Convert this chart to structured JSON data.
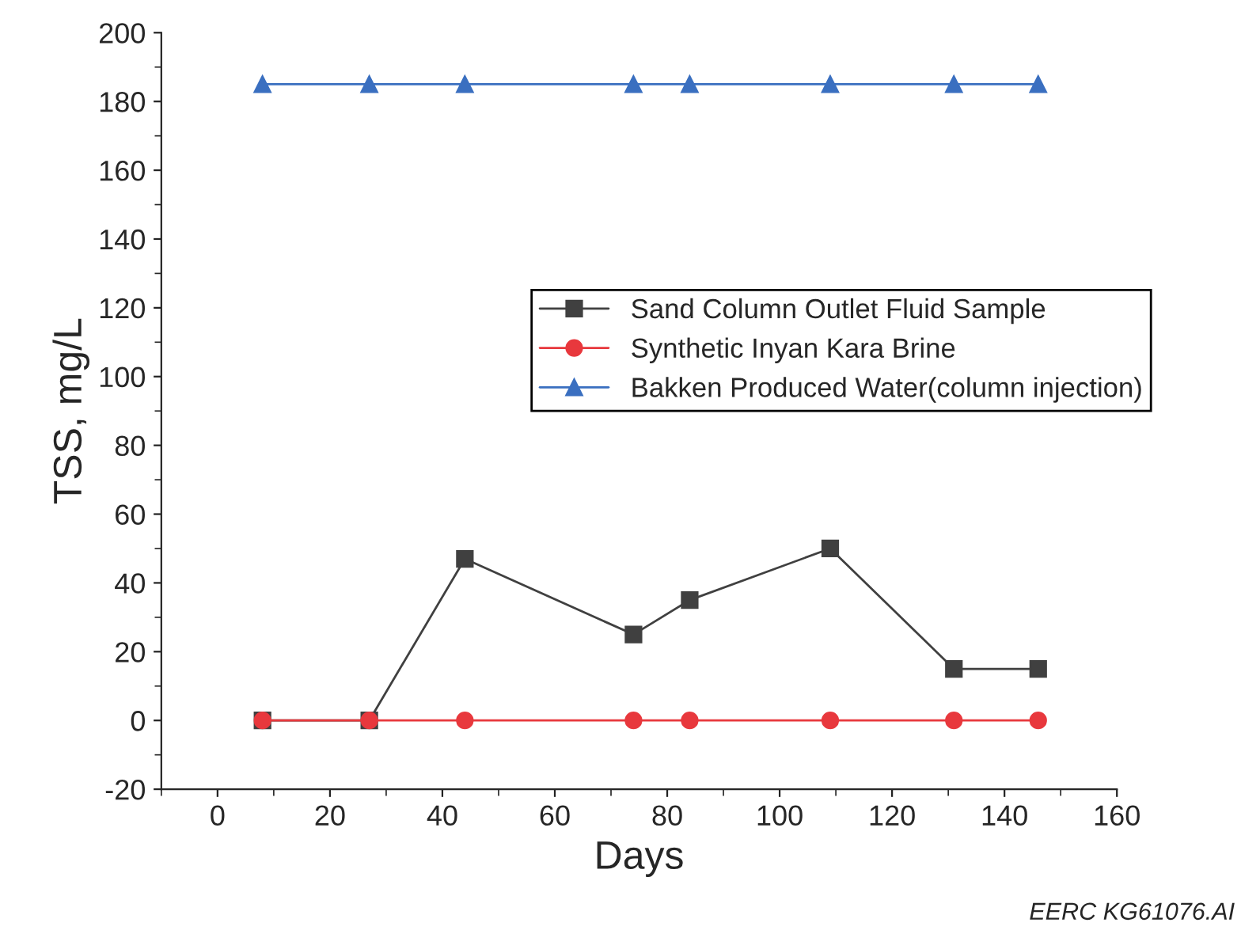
{
  "chart_data": {
    "type": "line",
    "xlabel": "Days",
    "ylabel": "TSS, mg/L",
    "x": [
      8,
      27,
      44,
      74,
      84,
      109,
      131,
      146
    ],
    "series": [
      {
        "name": "Sand Column Outlet Fluid Sample",
        "color": "#404040",
        "marker": "square",
        "values": [
          0,
          0,
          47,
          25,
          35,
          50,
          15,
          15
        ]
      },
      {
        "name": "Synthetic Inyan Kara Brine",
        "color": "#e8383d",
        "marker": "circle",
        "values": [
          0,
          0,
          0,
          0,
          0,
          0,
          0,
          0
        ]
      },
      {
        "name": "Bakken Produced Water(column injection)",
        "color": "#3a6fc0",
        "marker": "triangle",
        "values": [
          185,
          185,
          185,
          185,
          185,
          185,
          185,
          185
        ]
      }
    ],
    "xlim": [
      -10,
      160
    ],
    "xticks": [
      0,
      20,
      40,
      60,
      80,
      100,
      120,
      140,
      160
    ],
    "ylim": [
      -20,
      200
    ],
    "yticks": [
      -20,
      0,
      20,
      40,
      60,
      80,
      100,
      120,
      140,
      160,
      180,
      200
    ],
    "grid": false,
    "legend": "center right",
    "line_style": "solid",
    "annotations": [
      "EERC KG61076.AI"
    ]
  }
}
